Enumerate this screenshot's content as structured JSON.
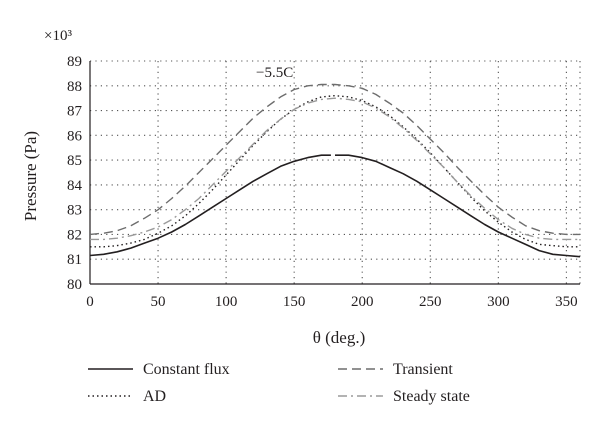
{
  "chart_data": {
    "type": "line",
    "multiplier_label": "×10³",
    "annotation": "−5.5C",
    "xlabel": "θ (deg.)",
    "ylabel": "Pressure (Pa)",
    "xlim": [
      0,
      360
    ],
    "ylim": [
      80,
      89
    ],
    "x_ticks": [
      0,
      50,
      100,
      150,
      200,
      250,
      300,
      350
    ],
    "y_ticks": [
      80,
      81,
      82,
      83,
      84,
      85,
      86,
      87,
      88,
      89
    ],
    "grid": "dotted",
    "legend_position": "bottom",
    "x": [
      0,
      10,
      20,
      30,
      40,
      50,
      60,
      70,
      80,
      90,
      100,
      110,
      120,
      130,
      140,
      150,
      160,
      170,
      180,
      190,
      200,
      210,
      220,
      230,
      240,
      250,
      260,
      270,
      280,
      290,
      300,
      310,
      320,
      330,
      340,
      350,
      360
    ],
    "series": [
      {
        "name": "Constant flux",
        "color": "#231f20",
        "dash": "solid",
        "values": [
          81.15,
          81.2,
          81.3,
          81.45,
          81.65,
          81.85,
          82.1,
          82.4,
          82.75,
          83.1,
          83.45,
          83.8,
          84.15,
          84.45,
          84.75,
          84.95,
          85.1,
          85.2,
          85.2,
          85.2,
          85.1,
          84.95,
          84.7,
          84.45,
          84.15,
          83.8,
          83.45,
          83.1,
          82.75,
          82.4,
          82.1,
          81.85,
          81.6,
          81.35,
          81.2,
          81.15,
          81.1
        ]
      },
      {
        "name": "Transient",
        "color": "#6d6d6d",
        "dash": "dashed",
        "values": [
          82.0,
          82.05,
          82.15,
          82.35,
          82.65,
          83.0,
          83.45,
          83.95,
          84.5,
          85.05,
          85.6,
          86.15,
          86.7,
          87.15,
          87.55,
          87.85,
          88.0,
          88.05,
          88.05,
          88.0,
          87.9,
          87.65,
          87.3,
          86.9,
          86.4,
          85.85,
          85.3,
          84.7,
          84.15,
          83.6,
          83.1,
          82.7,
          82.35,
          82.15,
          82.05,
          82.0,
          82.0
        ]
      },
      {
        "name": "AD",
        "color": "#231f20",
        "dash": "dotted",
        "values": [
          81.5,
          81.5,
          81.55,
          81.65,
          81.8,
          82.05,
          82.35,
          82.75,
          83.25,
          83.8,
          84.4,
          85.0,
          85.6,
          86.15,
          86.65,
          87.05,
          87.35,
          87.55,
          87.6,
          87.55,
          87.4,
          87.15,
          86.8,
          86.35,
          85.85,
          85.3,
          84.7,
          84.1,
          83.5,
          82.95,
          82.5,
          82.1,
          81.8,
          81.6,
          81.55,
          81.5,
          81.5
        ]
      },
      {
        "name": "Steady state",
        "color": "#9a9a9a",
        "dash": "dashdot",
        "values": [
          81.8,
          81.8,
          81.85,
          81.95,
          82.1,
          82.3,
          82.6,
          83.0,
          83.45,
          84.0,
          84.55,
          85.1,
          85.65,
          86.2,
          86.65,
          87.05,
          87.3,
          87.45,
          87.5,
          87.45,
          87.35,
          87.1,
          86.75,
          86.3,
          85.8,
          85.25,
          84.7,
          84.1,
          83.55,
          83.05,
          82.6,
          82.25,
          82.0,
          81.85,
          81.8,
          81.8,
          81.8
        ]
      }
    ]
  }
}
